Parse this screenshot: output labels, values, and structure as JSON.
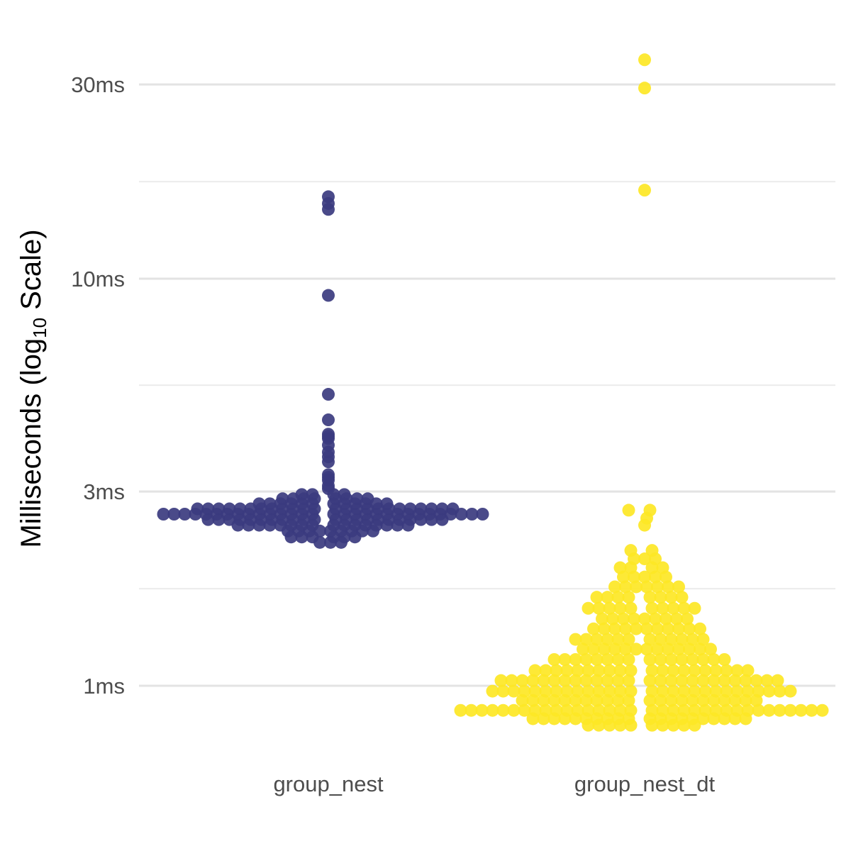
{
  "chart_data": {
    "type": "scatter",
    "subtype": "beeswarm",
    "title": "",
    "xlabel": "",
    "ylabel": {
      "prefix": "Milliseconds (log",
      "subscript": "10",
      "suffix": " Scale)"
    },
    "y_scale": "log10",
    "y_unit": "ms",
    "ylim": [
      0.7,
      38
    ],
    "grid": true,
    "legend": "none",
    "y_ticks": [
      {
        "value": 1,
        "label": "1ms"
      },
      {
        "value": 3,
        "label": "3ms"
      },
      {
        "value": 10,
        "label": "10ms"
      },
      {
        "value": 30,
        "label": "30ms"
      }
    ],
    "y_minor_gridlines": [
      1.732,
      5.477,
      17.32
    ],
    "categories": [
      "group_nest",
      "group_nest_dt"
    ],
    "series": [
      {
        "category": "group_nest",
        "color": "#3b3b7f",
        "outliers": [
          15.9,
          15.3,
          14.8,
          9.1,
          5.2,
          4.5,
          4.15,
          4.1,
          4.05,
          3.9,
          3.75,
          3.65,
          3.55,
          3.3,
          3.25,
          3.2,
          3.1,
          3.05
        ],
        "bulk": [
          {
            "y": 2.95,
            "count": 4
          },
          {
            "y": 2.88,
            "count": 8
          },
          {
            "y": 2.8,
            "count": 12
          },
          {
            "y": 2.72,
            "count": 24
          },
          {
            "y": 2.64,
            "count": 30
          },
          {
            "y": 2.56,
            "count": 22
          },
          {
            "y": 2.48,
            "count": 16
          },
          {
            "y": 2.4,
            "count": 9
          },
          {
            "y": 2.32,
            "count": 6
          },
          {
            "y": 2.25,
            "count": 3
          }
        ]
      },
      {
        "category": "group_nest_dt",
        "color": "#fde725",
        "outliers": [
          34.5,
          29.4,
          16.5
        ],
        "bulk": [
          {
            "y": 2.7,
            "count": 2
          },
          {
            "y": 2.58,
            "count": 1
          },
          {
            "y": 2.48,
            "count": 1
          },
          {
            "y": 2.15,
            "count": 2
          },
          {
            "y": 2.05,
            "count": 3
          },
          {
            "y": 1.95,
            "count": 4
          },
          {
            "y": 1.85,
            "count": 5
          },
          {
            "y": 1.75,
            "count": 7
          },
          {
            "y": 1.65,
            "count": 8
          },
          {
            "y": 1.55,
            "count": 10
          },
          {
            "y": 1.46,
            "count": 9
          },
          {
            "y": 1.38,
            "count": 11
          },
          {
            "y": 1.3,
            "count": 12
          },
          {
            "y": 1.23,
            "count": 13
          },
          {
            "y": 1.16,
            "count": 16
          },
          {
            "y": 1.09,
            "count": 20
          },
          {
            "y": 1.03,
            "count": 26
          },
          {
            "y": 0.97,
            "count": 28
          },
          {
            "y": 0.92,
            "count": 22
          },
          {
            "y": 0.87,
            "count": 34
          },
          {
            "y": 0.83,
            "count": 20
          },
          {
            "y": 0.8,
            "count": 10
          }
        ]
      }
    ]
  }
}
